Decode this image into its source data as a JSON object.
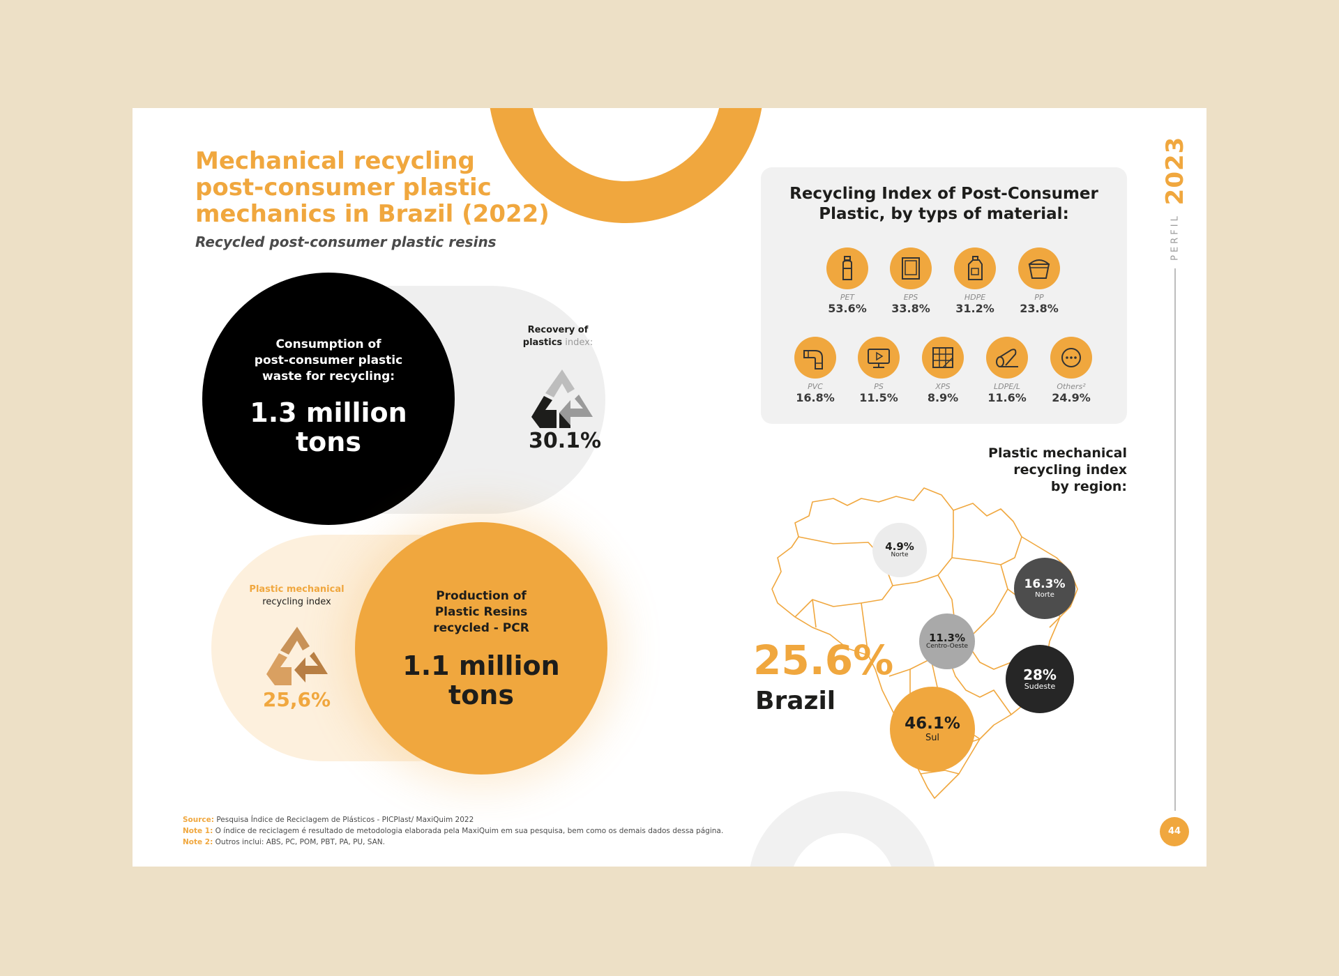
{
  "header": {
    "title_lines": [
      "Mechanical recycling",
      "post-consumer plastic",
      "mechanics in Brazil (2022)"
    ],
    "subtitle": "Recycled post-consumer plastic resins"
  },
  "side": {
    "perfil": "PERFIL",
    "year": "2023",
    "page_number": "44"
  },
  "consumption": {
    "label_lines": [
      "Consumption of",
      "post-consumer plastic",
      "waste for recycling:"
    ],
    "value_lines": [
      "1.3 million",
      "tons"
    ]
  },
  "recovery": {
    "label_line1": "Recovery of",
    "label_line2_bold": "plastics",
    "label_line2_rest": " index:",
    "value": "30.1%"
  },
  "mech_index": {
    "label_line1": "Plastic mechanical",
    "label_line2": "recycling index",
    "value": "25,6%"
  },
  "production": {
    "label_lines": [
      "Production of",
      "Plastic Resins",
      "recycled - PCR"
    ],
    "value_lines": [
      "1.1 million",
      "tons"
    ]
  },
  "materials": {
    "title_lines": [
      "Recycling Index of Post-Consumer",
      "Plastic, by typs of material:"
    ],
    "items": [
      {
        "name": "PET",
        "value": "53.6%",
        "icon": "bottle-icon"
      },
      {
        "name": "EPS",
        "value": "33.8%",
        "icon": "foam-box-icon"
      },
      {
        "name": "HDPE",
        "value": "31.2%",
        "icon": "jug-icon"
      },
      {
        "name": "PP",
        "value": "23.8%",
        "icon": "bucket-icon"
      },
      {
        "name": "PVC",
        "value": "16.8%",
        "icon": "pipe-icon"
      },
      {
        "name": "PS",
        "value": "11.5%",
        "icon": "monitor-icon"
      },
      {
        "name": "XPS",
        "value": "8.9%",
        "icon": "insulation-panel-icon"
      },
      {
        "name": "LDPE/L",
        "value": "11.6%",
        "icon": "film-roll-icon"
      },
      {
        "name": "Others²",
        "value": "24.9%",
        "icon": "more-icon"
      }
    ]
  },
  "regions": {
    "title_lines": [
      "Plastic mechanical",
      "recycling index",
      "by region:"
    ],
    "brazil_value": "25.6%",
    "brazil_name": "Brazil",
    "items": [
      {
        "value": "4.9%",
        "region": "Norte"
      },
      {
        "value": "16.3%",
        "region": "Norte"
      },
      {
        "value": "11.3%",
        "region": "Centro-Oeste"
      },
      {
        "value": "28%",
        "region": "Sudeste"
      },
      {
        "value": "46.1%",
        "region": "Sul"
      }
    ]
  },
  "notes": [
    {
      "label": "Source:",
      "text": " Pesquisa Índice de Reciclagem de Plásticos - PICPlast/ MaxiQuim 2022"
    },
    {
      "label": "Note 1:",
      "text": " O índice de reciclagem é resultado de metodologia elaborada pela  MaxiQuim em sua pesquisa, bem como os demais dados dessa página."
    },
    {
      "label": "Note 2:",
      "text": " Outros inclui:  ABS, PC, POM, PBT, PA, PU, SAN."
    }
  ],
  "colors": {
    "orange": "#f0a73e",
    "black": "#000000",
    "dark_grey": "#4a4a4a",
    "light_grey": "#efefef",
    "cream": "#fdf0dd",
    "background": "#ede0c6"
  }
}
